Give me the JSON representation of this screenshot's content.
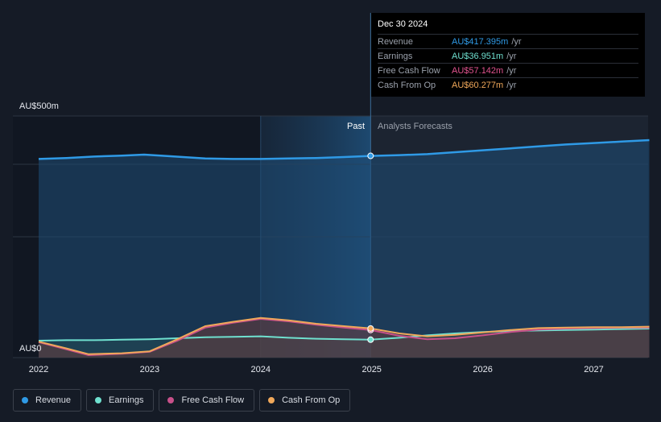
{
  "tooltip": {
    "date": "Dec 30 2024",
    "rows": [
      {
        "label": "Revenue",
        "value": "AU$417.395m",
        "unit": "/yr",
        "color": "#2f9ae6"
      },
      {
        "label": "Earnings",
        "value": "AU$36.951m",
        "unit": "/yr",
        "color": "#6fe0cf"
      },
      {
        "label": "Free Cash Flow",
        "value": "AU$57.142m",
        "unit": "/yr",
        "color": "#e2538f"
      },
      {
        "label": "Cash From Op",
        "value": "AU$60.277m",
        "unit": "/yr",
        "color": "#f0a85a"
      }
    ]
  },
  "legend": [
    {
      "label": "Revenue",
      "color": "#2f9ae6"
    },
    {
      "label": "Earnings",
      "color": "#6fe0cf"
    },
    {
      "label": "Free Cash Flow",
      "color": "#c8508a"
    },
    {
      "label": "Cash From Op",
      "color": "#f0a85a"
    }
  ],
  "chart_data": {
    "type": "line",
    "ylim": [
      0,
      500
    ],
    "y_top_label": "AU$500m",
    "y_bottom_label": "AU$0",
    "x_ticks": [
      "2022",
      "2023",
      "2024",
      "2025",
      "2026",
      "2027"
    ],
    "x_tick_values": [
      2022,
      2023,
      2024,
      2025,
      2026,
      2027
    ],
    "xlim": [
      2021.77,
      2027.5
    ],
    "past_label": "Past",
    "forecast_label": "Analysts Forecasts",
    "divider_x": 2024.99,
    "highlight_start_x": 2024.0,
    "series": [
      {
        "name": "Revenue",
        "color": "#2f9ae6",
        "points": [
          [
            2022.0,
            411
          ],
          [
            2022.25,
            413
          ],
          [
            2022.5,
            416
          ],
          [
            2022.75,
            418
          ],
          [
            2022.95,
            420
          ],
          [
            2023.1,
            418
          ],
          [
            2023.3,
            415
          ],
          [
            2023.5,
            412
          ],
          [
            2023.75,
            411
          ],
          [
            2024.0,
            411
          ],
          [
            2024.25,
            412
          ],
          [
            2024.5,
            413
          ],
          [
            2024.75,
            415
          ],
          [
            2024.99,
            417.4
          ],
          [
            2025.25,
            419
          ],
          [
            2025.5,
            421
          ],
          [
            2025.75,
            425
          ],
          [
            2026.0,
            429
          ],
          [
            2026.25,
            433
          ],
          [
            2026.5,
            437
          ],
          [
            2026.75,
            441
          ],
          [
            2027.0,
            444
          ],
          [
            2027.25,
            447
          ],
          [
            2027.5,
            450
          ]
        ]
      },
      {
        "name": "Earnings",
        "color": "#6fe0cf",
        "points": [
          [
            2022.0,
            35
          ],
          [
            2022.25,
            36
          ],
          [
            2022.5,
            36
          ],
          [
            2022.75,
            37
          ],
          [
            2023.0,
            38
          ],
          [
            2023.25,
            40
          ],
          [
            2023.5,
            42
          ],
          [
            2023.75,
            43
          ],
          [
            2024.0,
            44
          ],
          [
            2024.25,
            41
          ],
          [
            2024.5,
            39
          ],
          [
            2024.75,
            38
          ],
          [
            2024.99,
            37
          ],
          [
            2025.25,
            41
          ],
          [
            2025.5,
            46
          ],
          [
            2025.75,
            50
          ],
          [
            2026.0,
            53
          ],
          [
            2026.25,
            55
          ],
          [
            2026.5,
            56
          ],
          [
            2026.75,
            57
          ],
          [
            2027.0,
            58
          ],
          [
            2027.25,
            59
          ],
          [
            2027.5,
            60
          ]
        ]
      },
      {
        "name": "Free Cash Flow",
        "color": "#c8508a",
        "points": [
          [
            2022.0,
            32
          ],
          [
            2022.25,
            17
          ],
          [
            2022.45,
            5
          ],
          [
            2022.75,
            8
          ],
          [
            2023.0,
            12
          ],
          [
            2023.25,
            35
          ],
          [
            2023.5,
            62
          ],
          [
            2023.75,
            72
          ],
          [
            2024.0,
            80
          ],
          [
            2024.25,
            75
          ],
          [
            2024.5,
            68
          ],
          [
            2024.75,
            62
          ],
          [
            2024.99,
            57
          ],
          [
            2025.25,
            45
          ],
          [
            2025.5,
            38
          ],
          [
            2025.75,
            40
          ],
          [
            2026.0,
            46
          ],
          [
            2026.25,
            53
          ],
          [
            2026.5,
            58
          ],
          [
            2026.75,
            60
          ],
          [
            2027.0,
            61
          ],
          [
            2027.25,
            62
          ],
          [
            2027.5,
            62
          ]
        ]
      },
      {
        "name": "Cash From Op",
        "color": "#f0a85a",
        "points": [
          [
            2022.0,
            33
          ],
          [
            2022.25,
            19
          ],
          [
            2022.45,
            7
          ],
          [
            2022.75,
            9
          ],
          [
            2023.0,
            13
          ],
          [
            2023.25,
            38
          ],
          [
            2023.5,
            65
          ],
          [
            2023.75,
            74
          ],
          [
            2024.0,
            82
          ],
          [
            2024.25,
            77
          ],
          [
            2024.5,
            70
          ],
          [
            2024.75,
            65
          ],
          [
            2024.99,
            60.3
          ],
          [
            2025.25,
            50
          ],
          [
            2025.5,
            44
          ],
          [
            2025.75,
            47
          ],
          [
            2026.0,
            52
          ],
          [
            2026.25,
            57
          ],
          [
            2026.5,
            61
          ],
          [
            2026.75,
            62
          ],
          [
            2027.0,
            63
          ],
          [
            2027.25,
            63
          ],
          [
            2027.5,
            64
          ]
        ]
      }
    ]
  }
}
